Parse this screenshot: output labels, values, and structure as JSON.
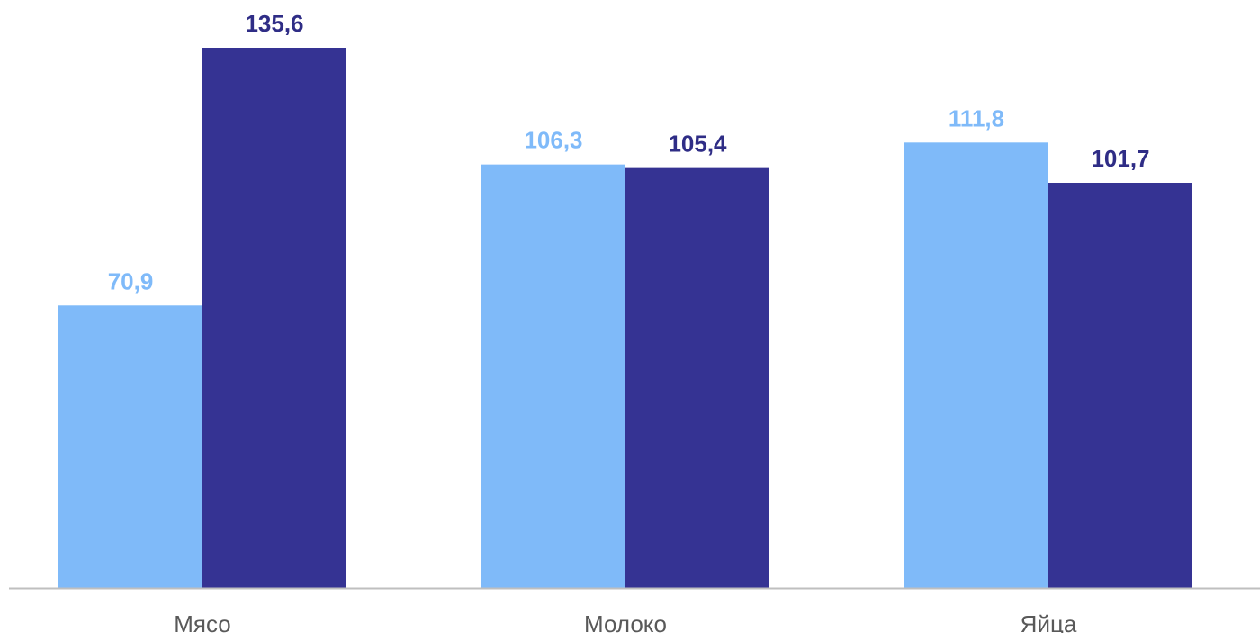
{
  "chart_data": {
    "type": "bar",
    "categories": [
      "Мясо",
      "Молоко",
      "Яйца"
    ],
    "series": [
      {
        "values": [
          70.9,
          106.3,
          111.8
        ],
        "color": "#7fbaf9"
      },
      {
        "values": [
          135.6,
          105.4,
          101.7
        ],
        "color": "#353393"
      }
    ],
    "data_labels": [
      [
        "70,9",
        "106,3",
        "111,8"
      ],
      [
        "135,6",
        "105,4",
        "101,7"
      ]
    ],
    "label_colors": [
      "#7fbaf9",
      "#2f2d86"
    ],
    "axis_color": "#bfbfbf",
    "tick_label_color": "#595959",
    "ylim": [
      0,
      150
    ],
    "grid": false,
    "legend": "none"
  }
}
